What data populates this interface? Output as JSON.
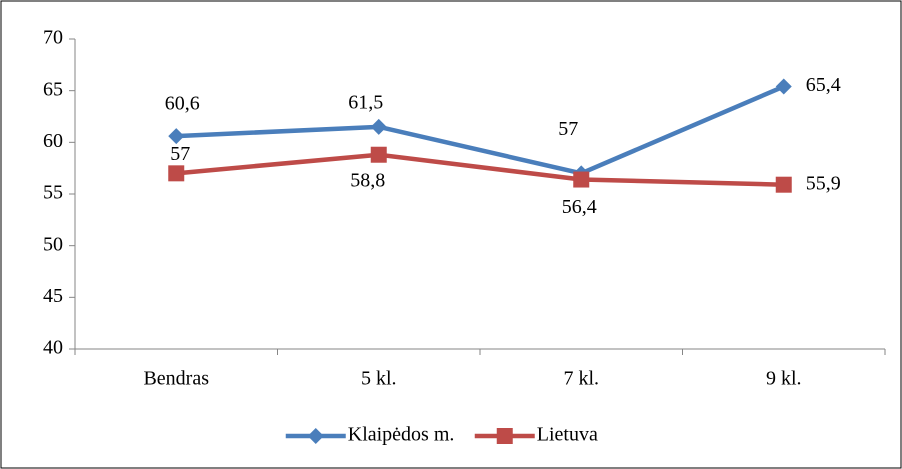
{
  "chart_data": {
    "type": "line",
    "categories": [
      "Bendras",
      "5 kl.",
      "7 kl.",
      "9 kl."
    ],
    "series": [
      {
        "name": "Klaipėdos m.",
        "color": "#4a7ebb",
        "marker": "diamond",
        "values": [
          60.6,
          61.5,
          57,
          65.4
        ],
        "value_labels": [
          "60,6",
          "61,5",
          "57",
          "65,4"
        ]
      },
      {
        "name": "Lietuva",
        "color": "#be4b48",
        "marker": "square",
        "values": [
          57,
          58.8,
          56.4,
          55.9
        ],
        "value_labels": [
          "57",
          "58,8",
          "56,4",
          "55,9"
        ]
      }
    ],
    "ylim": [
      40,
      70
    ],
    "yticks": [
      40,
      45,
      50,
      55,
      60,
      65,
      70
    ],
    "grid": false,
    "legend": "bottom"
  }
}
